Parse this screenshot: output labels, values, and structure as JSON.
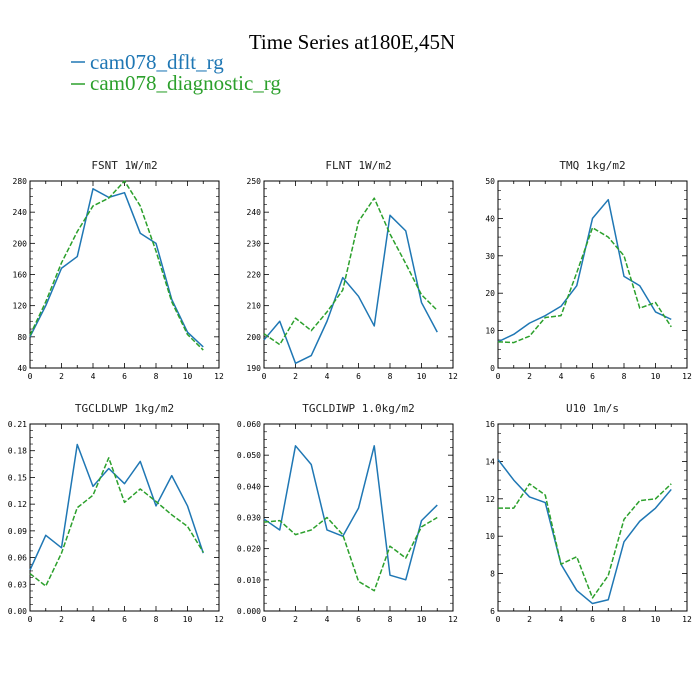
{
  "figure": {
    "title": "Time Series at180E,45N",
    "legend": [
      {
        "name": "cam078_dflt_rg",
        "color": "#1f77b4",
        "dash": "solid"
      },
      {
        "name": "cam078_diagnostic_rg",
        "color": "#2ca02c",
        "dash": "dashed"
      }
    ]
  },
  "chart_data": [
    {
      "type": "line",
      "title": "FSNT 1W/m2",
      "x": [
        0,
        1,
        2,
        3,
        4,
        5,
        6,
        7,
        8,
        9,
        10,
        11
      ],
      "xlim": [
        0,
        12
      ],
      "xticks": [
        0,
        2,
        4,
        6,
        8,
        10,
        12
      ],
      "ylim": [
        40,
        280
      ],
      "yticks": [
        "40",
        "80",
        "120",
        "160",
        "200",
        "240",
        "280"
      ],
      "series": [
        {
          "name": "cam078_dflt_rg",
          "values": [
            80,
            120,
            168,
            183,
            270,
            259,
            265,
            213,
            200,
            128,
            86,
            67
          ]
        },
        {
          "name": "cam078_diagnostic_rg",
          "values": [
            82,
            125,
            175,
            215,
            248,
            258,
            280,
            248,
            190,
            125,
            83,
            63
          ]
        }
      ]
    },
    {
      "type": "line",
      "title": "FLNT 1W/m2",
      "x": [
        0,
        1,
        2,
        3,
        4,
        5,
        6,
        7,
        8,
        9,
        10,
        11
      ],
      "xlim": [
        0,
        12
      ],
      "xticks": [
        0,
        2,
        4,
        6,
        8,
        10,
        12
      ],
      "ylim": [
        190,
        250
      ],
      "yticks": [
        "190",
        "200",
        "210",
        "220",
        "230",
        "240",
        "250"
      ],
      "series": [
        {
          "name": "cam078_dflt_rg",
          "values": [
            199,
            205,
            191.5,
            194,
            205,
            219,
            213,
            203.5,
            239,
            234,
            211,
            201.5
          ]
        },
        {
          "name": "cam078_diagnostic_rg",
          "values": [
            201,
            197.5,
            206,
            202,
            208,
            215,
            237,
            244.5,
            233,
            223.5,
            213.5,
            208.5
          ]
        }
      ]
    },
    {
      "type": "line",
      "title": "TMQ 1kg/m2",
      "x": [
        0,
        1,
        2,
        3,
        4,
        5,
        6,
        7,
        8,
        9,
        10,
        11
      ],
      "xlim": [
        0,
        12
      ],
      "xticks": [
        0,
        2,
        4,
        6,
        8,
        10,
        12
      ],
      "ylim": [
        0,
        50
      ],
      "yticks": [
        "0",
        "10",
        "20",
        "30",
        "40",
        "50"
      ],
      "series": [
        {
          "name": "cam078_dflt_rg",
          "values": [
            7,
            9,
            12,
            14,
            16.5,
            22,
            40,
            45,
            24.5,
            22,
            15,
            13
          ]
        },
        {
          "name": "cam078_diagnostic_rg",
          "values": [
            7,
            6.8,
            8.5,
            13.5,
            14,
            25.5,
            37.5,
            35,
            30,
            16,
            17.5,
            11
          ]
        }
      ]
    },
    {
      "type": "line",
      "title": "TGCLDLWP 1kg/m2",
      "x": [
        0,
        1,
        2,
        3,
        4,
        5,
        6,
        7,
        8,
        9,
        10,
        11
      ],
      "xlim": [
        0,
        12
      ],
      "xticks": [
        0,
        2,
        4,
        6,
        8,
        10,
        12
      ],
      "ylim": [
        0,
        0.21
      ],
      "yticks": [
        "0.00",
        "0.03",
        "0.06",
        "0.09",
        "0.12",
        "0.15",
        "0.18",
        "0.21"
      ],
      "series": [
        {
          "name": "cam078_dflt_rg",
          "values": [
            0.046,
            0.085,
            0.071,
            0.187,
            0.14,
            0.16,
            0.143,
            0.168,
            0.118,
            0.152,
            0.118,
            0.065
          ]
        },
        {
          "name": "cam078_diagnostic_rg",
          "values": [
            0.042,
            0.028,
            0.065,
            0.116,
            0.13,
            0.172,
            0.122,
            0.137,
            0.123,
            0.108,
            0.095,
            0.066
          ]
        }
      ]
    },
    {
      "type": "line",
      "title": "TGCLDIWP 1.0kg/m2",
      "x": [
        0,
        1,
        2,
        3,
        4,
        5,
        6,
        7,
        8,
        9,
        10,
        11
      ],
      "xlim": [
        0,
        12
      ],
      "xticks": [
        0,
        2,
        4,
        6,
        8,
        10,
        12
      ],
      "ylim": [
        0,
        0.06
      ],
      "yticks": [
        "0.000",
        "0.010",
        "0.020",
        "0.030",
        "0.040",
        "0.050",
        "0.060"
      ],
      "series": [
        {
          "name": "cam078_dflt_rg",
          "values": [
            0.0295,
            0.026,
            0.053,
            0.047,
            0.026,
            0.024,
            0.033,
            0.053,
            0.0115,
            0.01,
            0.029,
            0.034
          ]
        },
        {
          "name": "cam078_diagnostic_rg",
          "values": [
            0.0285,
            0.029,
            0.0245,
            0.026,
            0.03,
            0.0245,
            0.0095,
            0.0065,
            0.0208,
            0.017,
            0.027,
            0.03
          ]
        }
      ]
    },
    {
      "type": "line",
      "title": "U10 1m/s",
      "x": [
        0,
        1,
        2,
        3,
        4,
        5,
        6,
        7,
        8,
        9,
        10,
        11
      ],
      "xlim": [
        0,
        12
      ],
      "xticks": [
        0,
        2,
        4,
        6,
        8,
        10,
        12
      ],
      "ylim": [
        6,
        16
      ],
      "yticks": [
        "6",
        "8",
        "10",
        "12",
        "14",
        "16"
      ],
      "series": [
        {
          "name": "cam078_dflt_rg",
          "values": [
            14.1,
            13,
            12.1,
            11.8,
            8.5,
            7.1,
            6.4,
            6.6,
            9.7,
            10.8,
            11.5,
            12.5
          ]
        },
        {
          "name": "cam078_diagnostic_rg",
          "values": [
            11.5,
            11.5,
            12.8,
            12.2,
            8.5,
            8.9,
            6.7,
            7.9,
            10.9,
            11.9,
            12,
            12.8
          ]
        }
      ]
    }
  ]
}
